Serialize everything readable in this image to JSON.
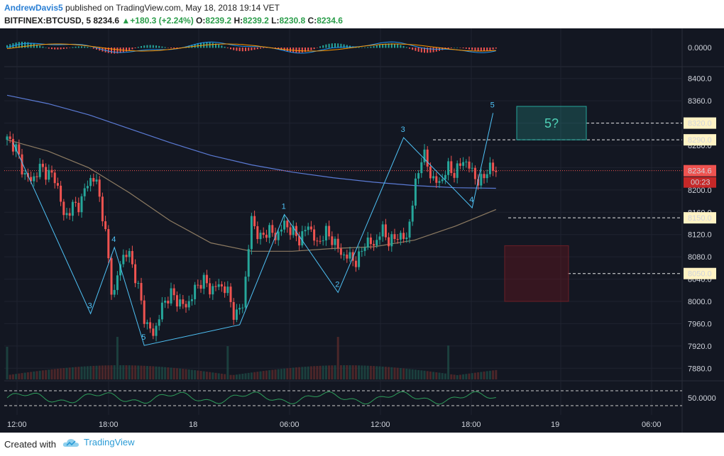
{
  "header": {
    "author": "AndrewDavis5",
    "published": "published on TradingView.com, May 18, 2018 19:14 VET",
    "symbol": "BITFINEX:BTCUSD, 5",
    "last": "8234.6",
    "change": "+180.3 (+2.24%)",
    "open_label": "O:",
    "open": "8239.2",
    "high_label": "H:",
    "high": "8239.2",
    "low_label": "L:",
    "low": "8230.8",
    "close_label": "C:",
    "close": "8234.6"
  },
  "footer": {
    "created_with": "Created with",
    "brand": "TradingView"
  },
  "colors": {
    "background": "#131722",
    "up": "#26a69a",
    "down": "#ef5350",
    "wave": "#4fc3f7",
    "ma_blue": "#5b7bd5",
    "ma_tan": "#8d7b62"
  },
  "chart_data": {
    "type": "candlestick",
    "price_axis": {
      "ticks": [
        "8400.0",
        "8360.0",
        "8320.0",
        "8280.0",
        "8240.0",
        "8200.0",
        "8160.0",
        "8120.0",
        "8080.0",
        "8040.0",
        "8000.0",
        "7960.0",
        "7920.0",
        "7880.0"
      ],
      "ylim": [
        7860,
        8420
      ]
    },
    "time_axis": {
      "ticks": [
        "12:00",
        "18:00",
        "18",
        "06:00",
        "12:00",
        "18:00",
        "19",
        "06:00"
      ]
    },
    "last_price": {
      "value": "8234.6",
      "countdown": "00:23"
    },
    "price_tags": [
      {
        "value": 8320.0,
        "label": "8320.0"
      },
      {
        "value": 8290.0,
        "label": "8290.0"
      },
      {
        "value": 8150.0,
        "label": "8150.0"
      },
      {
        "value": 8050.0,
        "label": "8050.0"
      }
    ],
    "close_series": [
      8290,
      8280,
      8230,
      8215,
      8240,
      8230,
      8220,
      8150,
      8170,
      8175,
      8220,
      8215,
      8130,
      8000,
      8080,
      8085,
      8030,
      7960,
      7940,
      7990,
      8015,
      8000,
      7990,
      8020,
      8040,
      8020,
      8030,
      8020,
      7970,
      8000,
      8150,
      8110,
      8130,
      8115,
      8140,
      8125,
      8110,
      8140,
      8100,
      8125,
      8110,
      8085,
      8080,
      8070,
      8110,
      8100,
      8130,
      8105,
      8120,
      8110,
      8200,
      8270,
      8225,
      8210,
      8240,
      8230,
      8255,
      8235,
      8210,
      8240,
      8234.6
    ],
    "wave_labels": [
      {
        "label": "3",
        "t": 28,
        "price": 7978
      },
      {
        "label": "4",
        "t": 36,
        "price": 8097
      },
      {
        "label": "5",
        "t": 46,
        "price": 7921
      },
      {
        "label": "1",
        "t": 93,
        "price": 8156
      },
      {
        "label": "2",
        "t": 111,
        "price": 8016
      },
      {
        "label": "3",
        "t": 133,
        "price": 8294
      },
      {
        "label": "4",
        "t": 156,
        "price": 8168
      },
      {
        "label": "5",
        "t": 163,
        "price": 8338
      }
    ],
    "target_box_label": "5?",
    "macd_axis": "0.0000",
    "rsi_axis": "50.0000"
  }
}
